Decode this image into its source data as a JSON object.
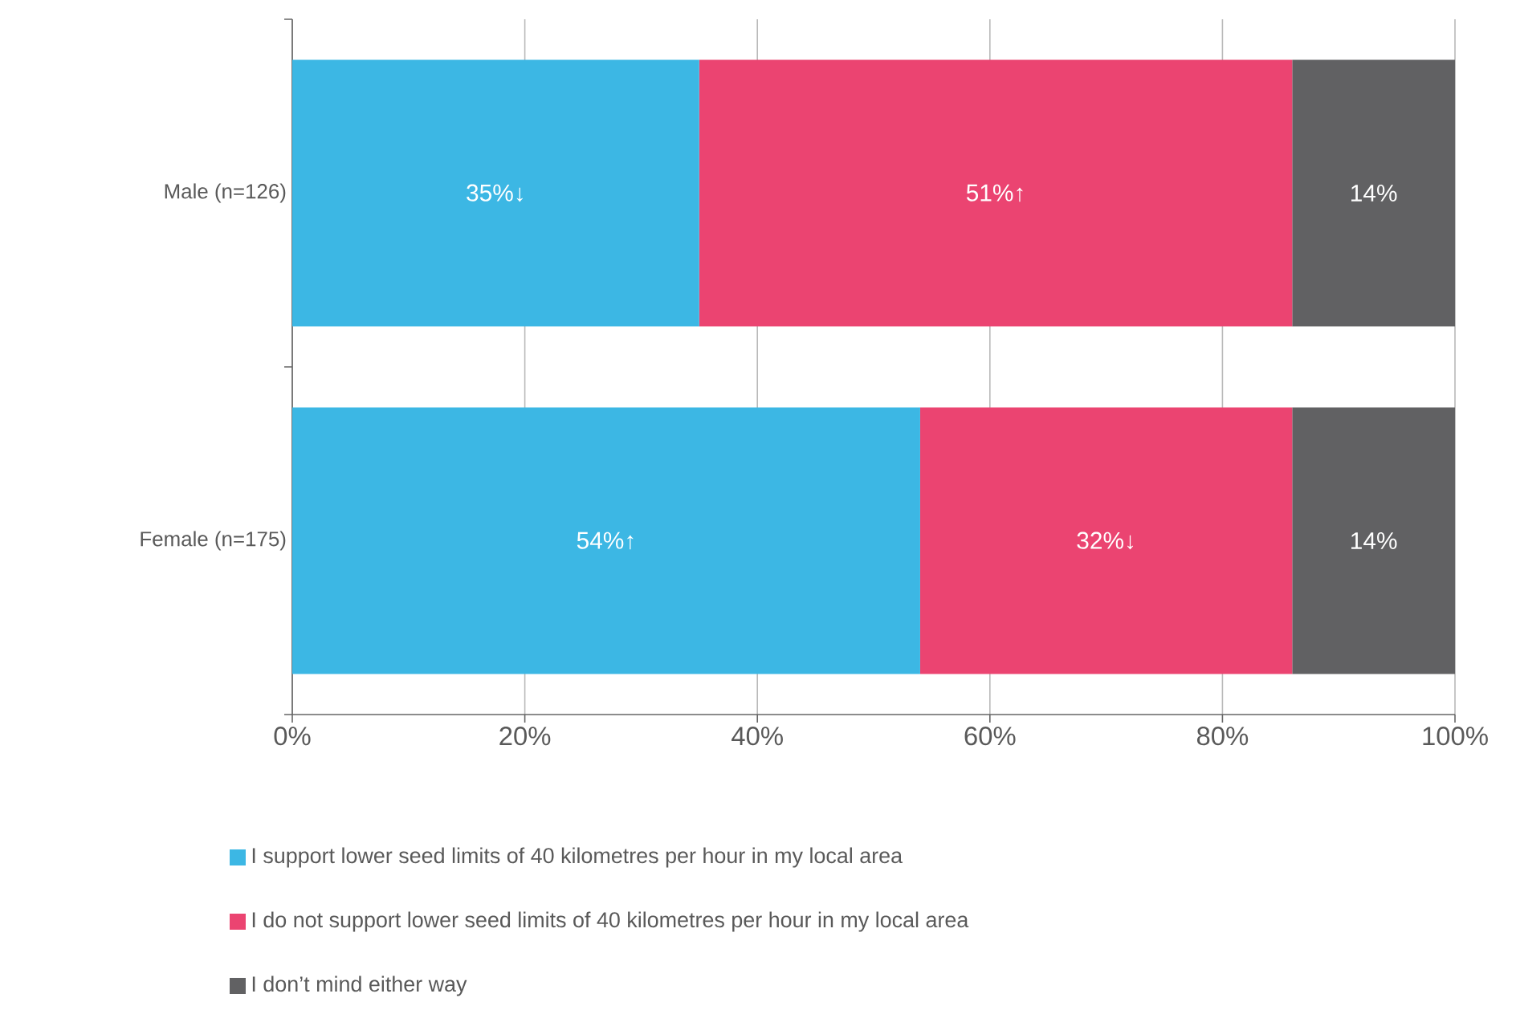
{
  "chart_data": {
    "type": "bar",
    "orientation": "horizontal",
    "stacked": true,
    "categories": [
      "Male (n=126)",
      "Female (n=175)"
    ],
    "series": [
      {
        "name": "I support lower seed limits of 40 kilometres per hour in my local area",
        "color": "#3cb7e4",
        "values": [
          35,
          54
        ],
        "value_labels": [
          "35%↓",
          "54%↑"
        ]
      },
      {
        "name": "I do not support lower seed limits of 40 kilometres per hour in my local area",
        "color": "#eb4471",
        "values": [
          51,
          32
        ],
        "value_labels": [
          "51%↑",
          "32%↓"
        ]
      },
      {
        "name": "I don’t mind either way",
        "color": "#616163",
        "values": [
          14,
          14
        ],
        "value_labels": [
          "14%",
          "14%"
        ]
      }
    ],
    "xlim": [
      0,
      100
    ],
    "xticks": [
      {
        "value": 0,
        "label": "0%"
      },
      {
        "value": 20,
        "label": "20%"
      },
      {
        "value": 40,
        "label": "40%"
      },
      {
        "value": 60,
        "label": "60%"
      },
      {
        "value": 80,
        "label": "80%"
      },
      {
        "value": 100,
        "label": "100%"
      }
    ],
    "grid": "x",
    "legend": "bottom"
  }
}
